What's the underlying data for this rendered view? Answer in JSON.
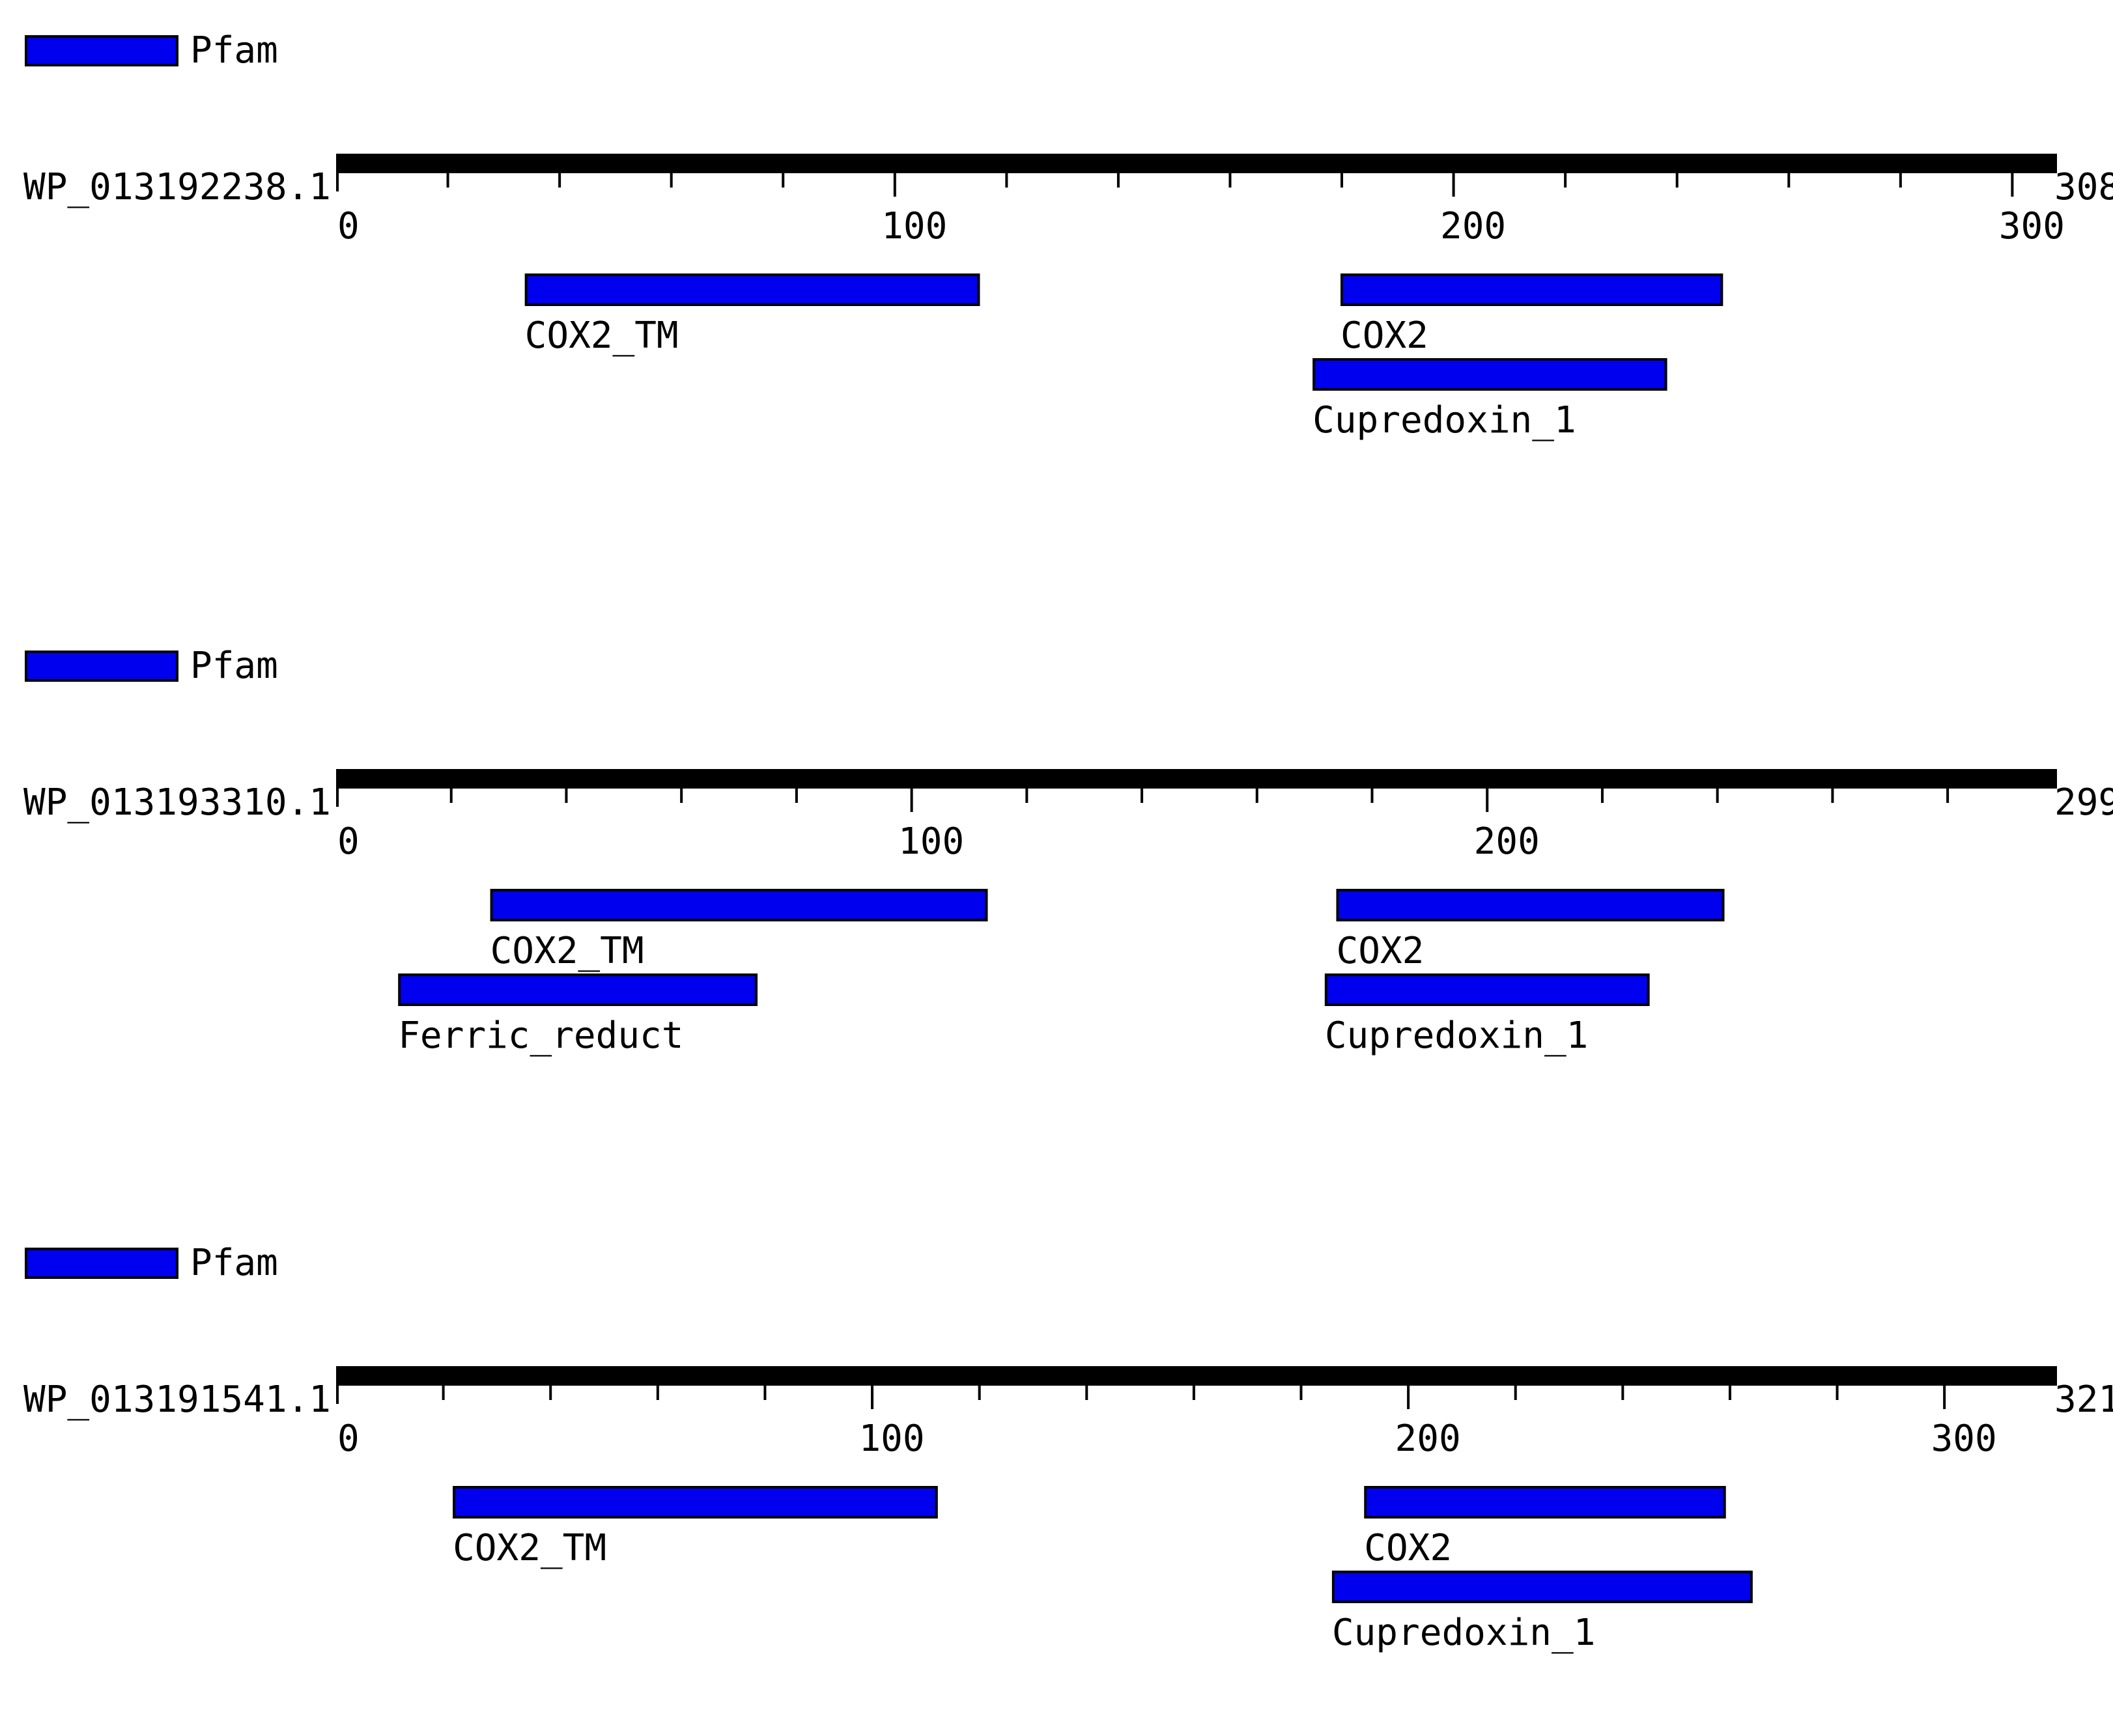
{
  "colors": {
    "domain_fill": "#0000ee",
    "domain_stroke": "#000000",
    "ruler": "#000000",
    "background": "#ffffff"
  },
  "panels": [
    {
      "legend_label": "Pfam",
      "protein_id": "WP_013192238.1",
      "length": 308,
      "length_label": "308",
      "tick_labels": [
        "0",
        "100",
        "200",
        "300"
      ],
      "major_ticks": [
        0,
        100,
        200,
        300
      ],
      "minor_ticks": [
        20,
        40,
        60,
        80,
        120,
        140,
        160,
        180,
        220,
        240,
        260,
        280
      ],
      "domains": [
        {
          "name": "COX2_TM",
          "start": 34,
          "end": 115,
          "row": 0
        },
        {
          "name": "COX2",
          "start": 180,
          "end": 248,
          "row": 0
        },
        {
          "name": "Cupredoxin_1",
          "start": 175,
          "end": 238,
          "row": 1
        }
      ]
    },
    {
      "legend_label": "Pfam",
      "protein_id": "WP_013193310.1",
      "length": 299,
      "length_label": "299",
      "tick_labels": [
        "0",
        "100",
        "200"
      ],
      "major_ticks": [
        0,
        100,
        200
      ],
      "minor_ticks": [
        20,
        40,
        60,
        80,
        120,
        140,
        160,
        180,
        220,
        240,
        260,
        280
      ],
      "domains": [
        {
          "name": "COX2_TM",
          "start": 27,
          "end": 113,
          "row": 0
        },
        {
          "name": "COX2",
          "start": 174,
          "end": 241,
          "row": 0
        },
        {
          "name": "Ferric_reduct",
          "start": 11,
          "end": 73,
          "row": 1
        },
        {
          "name": "Cupredoxin_1",
          "start": 172,
          "end": 228,
          "row": 1
        }
      ]
    },
    {
      "legend_label": "Pfam",
      "protein_id": "WP_013191541.1",
      "length": 321,
      "length_label": "321",
      "tick_labels": [
        "0",
        "100",
        "200",
        "300"
      ],
      "major_ticks": [
        0,
        100,
        200,
        300
      ],
      "minor_ticks": [
        20,
        40,
        60,
        80,
        120,
        140,
        160,
        180,
        220,
        240,
        260,
        280
      ],
      "domains": [
        {
          "name": "COX2_TM",
          "start": 22,
          "end": 112,
          "row": 0
        },
        {
          "name": "COX2",
          "start": 192,
          "end": 259,
          "row": 0
        },
        {
          "name": "Cupredoxin_1",
          "start": 186,
          "end": 264,
          "row": 1
        }
      ]
    }
  ]
}
